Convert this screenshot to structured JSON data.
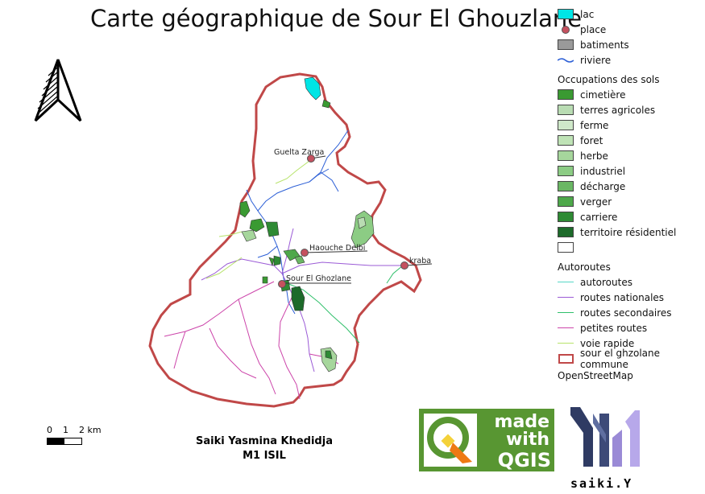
{
  "title": "Carte géographique de Sour El Ghouzlane",
  "places": [
    {
      "name": "Guelta Zarga"
    },
    {
      "name": "Haouche Delbi"
    },
    {
      "name": "kraba"
    },
    {
      "name": "Sour El Ghozlane"
    }
  ],
  "legend": {
    "items": [
      {
        "label": "lac",
        "type": "box",
        "color": "#00e5e5"
      },
      {
        "label": "place",
        "type": "point",
        "color": "#c5515f"
      },
      {
        "label": "batiments",
        "type": "box",
        "color": "#9a9a9a"
      },
      {
        "label": "riviere",
        "type": "wave",
        "color": "#2c5fd6"
      }
    ],
    "landuse_heading": "Occupations des sols",
    "landuse": [
      {
        "label": "cimetière",
        "color": "#3a9a32"
      },
      {
        "label": "terres agricoles",
        "color": "#b9dcb3"
      },
      {
        "label": "ferme",
        "color": "#cfe8c9"
      },
      {
        "label": "foret",
        "color": "#bfe3b6"
      },
      {
        "label": "herbe",
        "color": "#a6d69c"
      },
      {
        "label": "industriel",
        "color": "#8ccc84"
      },
      {
        "label": "décharge",
        "color": "#6ab764"
      },
      {
        "label": "verger",
        "color": "#4ea84a"
      },
      {
        "label": "carriere",
        "color": "#2e8a34"
      },
      {
        "label": "territoire résidentiel",
        "color": "#1d6a2a"
      },
      {
        "label": "",
        "color": "#ffffff"
      }
    ],
    "roads_heading": "Autoroutes",
    "roads": [
      {
        "label": "autoroutes",
        "color": "#56d6c6"
      },
      {
        "label": "routes nationales",
        "color": "#9b5bd6"
      },
      {
        "label": "routes secondaires",
        "color": "#2fbf6a"
      },
      {
        "label": "petites routes",
        "color": "#cc44aa"
      },
      {
        "label": "voie rapide",
        "color": "#b7e36a"
      }
    ],
    "commune": {
      "label": "sour el ghzolane commune",
      "color": "#c04848"
    },
    "source": "OpenStreetMap"
  },
  "scale": {
    "labels": [
      "0",
      "1",
      "2 km"
    ]
  },
  "author": {
    "line1": "Saiki Yasmina Khedidja",
    "line2": "M1 ISIL"
  },
  "qgis_logo": {
    "line1": "made",
    "line2": "with",
    "line3": "QGIS"
  },
  "saiki_logo": {
    "label": "saiki.Y"
  }
}
